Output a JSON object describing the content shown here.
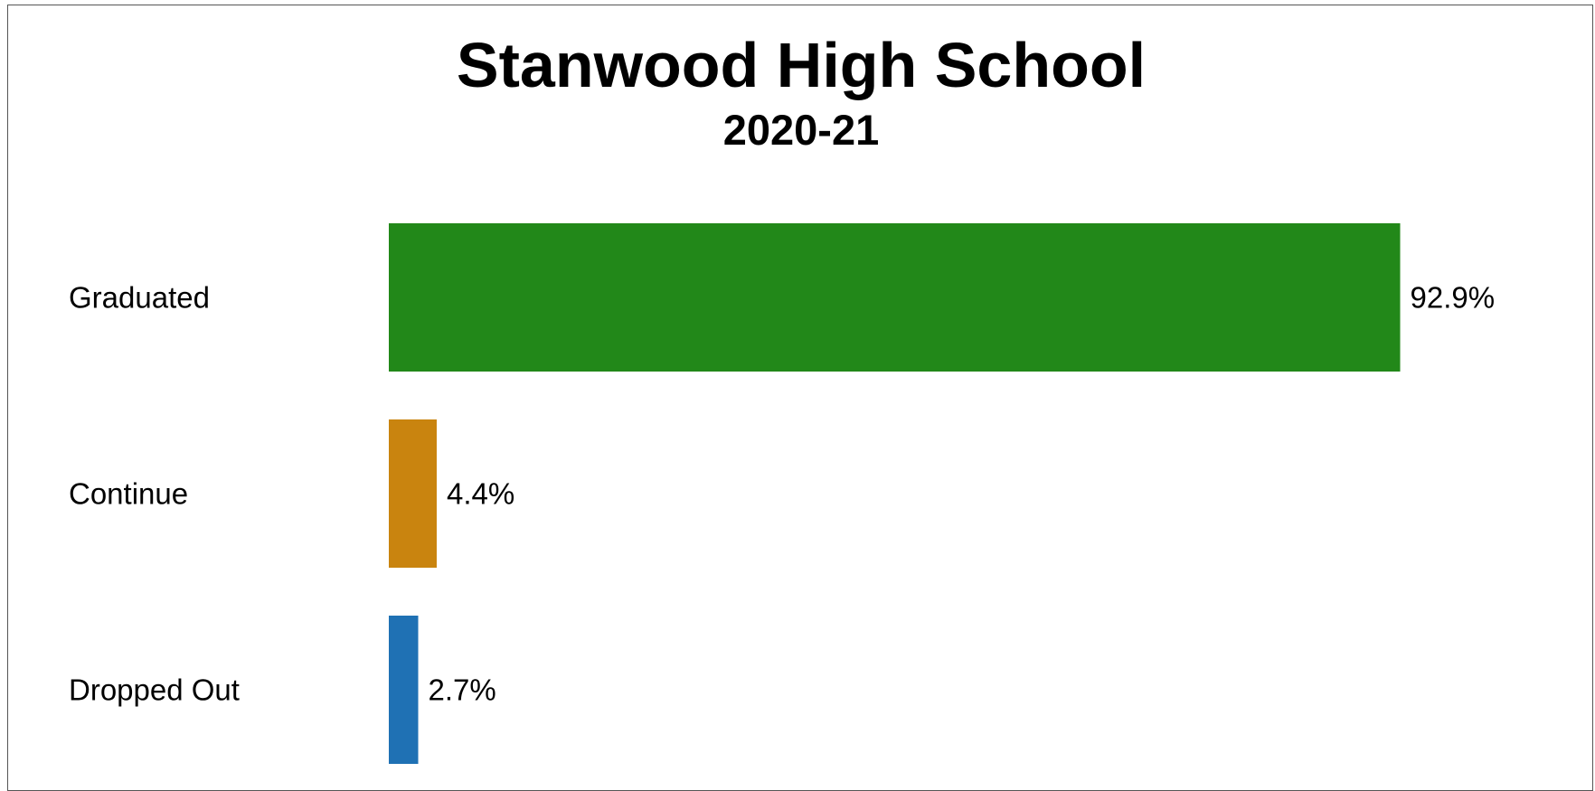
{
  "chart_data": {
    "type": "bar",
    "orientation": "horizontal",
    "title": "Stanwood High School",
    "subtitle": "2020-21",
    "categories": [
      "Graduated",
      "Continue",
      "Dropped Out"
    ],
    "values": [
      92.9,
      4.4,
      2.7
    ],
    "value_labels": [
      "92.9%",
      "4.4%",
      "2.7%"
    ],
    "colors": [
      "#228819",
      "#c9840f",
      "#1f71b4"
    ],
    "xlim": [
      0,
      100
    ],
    "grid": false,
    "legend": "none"
  }
}
